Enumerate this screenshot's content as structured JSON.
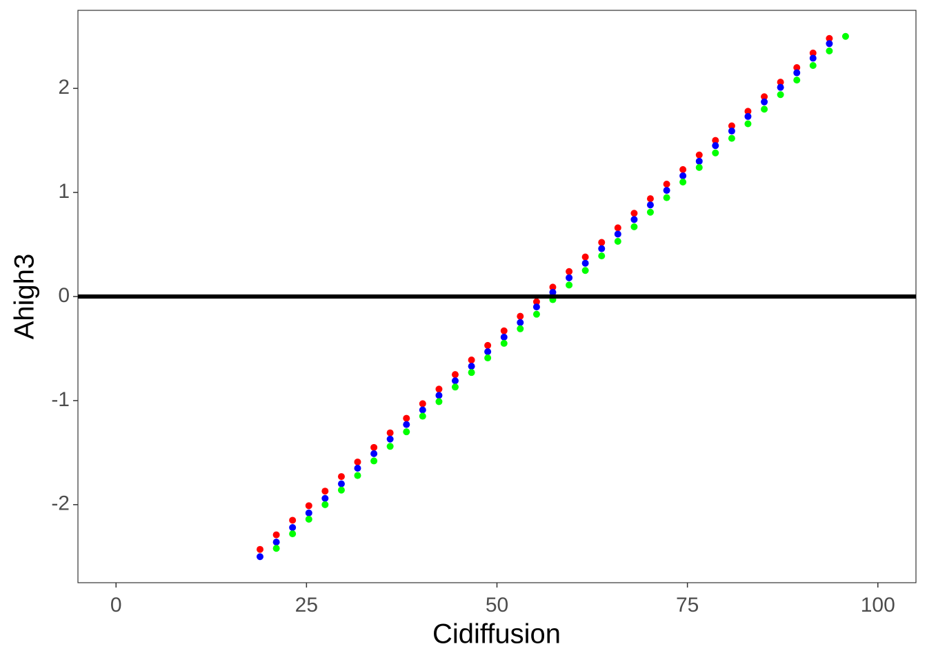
{
  "chart_data": {
    "type": "scatter",
    "x_label": "Cidiffusion",
    "y_label": "Ahigh3",
    "xlim": [
      -5,
      105
    ],
    "ylim": [
      -2.75,
      2.75
    ],
    "xticks": [
      0,
      25,
      50,
      75,
      100
    ],
    "yticks": [
      -2,
      -1,
      0,
      1,
      2
    ],
    "grid": false,
    "hline": 0,
    "hline_color": "#000000",
    "series": [
      {
        "color": "#ff0000",
        "x": [
          18.9,
          21.04,
          23.17,
          25.31,
          27.44,
          29.58,
          31.71,
          33.85,
          35.98,
          38.12,
          40.25,
          42.39,
          44.52,
          46.66,
          48.79,
          50.93,
          53.06,
          55.2,
          57.33,
          59.47,
          61.6,
          63.74,
          65.87,
          68.01,
          70.14,
          72.28,
          74.41,
          76.55,
          78.68,
          80.82,
          82.95,
          85.09,
          87.22,
          89.36,
          91.49,
          93.63
        ],
        "values": [
          -2.43,
          -2.29,
          -2.15,
          -2.01,
          -1.87,
          -1.73,
          -1.59,
          -1.45,
          -1.31,
          -1.17,
          -1.03,
          -0.89,
          -0.75,
          -0.61,
          -0.47,
          -0.33,
          -0.19,
          -0.05,
          0.09,
          0.24,
          0.38,
          0.52,
          0.66,
          0.8,
          0.94,
          1.08,
          1.22,
          1.36,
          1.5,
          1.64,
          1.78,
          1.92,
          2.06,
          2.2,
          2.34,
          2.48
        ]
      },
      {
        "color": "#0000ff",
        "x": [
          18.9,
          21.04,
          23.17,
          25.31,
          27.44,
          29.58,
          31.71,
          33.85,
          35.98,
          38.12,
          40.25,
          42.39,
          44.52,
          46.66,
          48.79,
          50.93,
          53.06,
          55.2,
          57.33,
          59.47,
          61.6,
          63.74,
          65.87,
          68.01,
          70.14,
          72.28,
          74.41,
          76.55,
          78.68,
          80.82,
          82.95,
          85.09,
          87.22,
          89.36,
          91.49,
          93.63
        ],
        "values": [
          -2.5,
          -2.36,
          -2.22,
          -2.08,
          -1.94,
          -1.8,
          -1.65,
          -1.51,
          -1.37,
          -1.23,
          -1.09,
          -0.95,
          -0.81,
          -0.67,
          -0.53,
          -0.39,
          -0.25,
          -0.1,
          0.04,
          0.18,
          0.32,
          0.46,
          0.6,
          0.74,
          0.88,
          1.02,
          1.16,
          1.3,
          1.45,
          1.59,
          1.73,
          1.87,
          2.01,
          2.15,
          2.29,
          2.43
        ]
      },
      {
        "color": "#00ff00",
        "x": [
          21.04,
          23.17,
          25.31,
          27.44,
          29.58,
          31.71,
          33.85,
          35.98,
          38.12,
          40.25,
          42.39,
          44.52,
          46.66,
          48.79,
          50.93,
          53.06,
          55.2,
          57.33,
          59.47,
          61.6,
          63.74,
          65.87,
          68.01,
          70.14,
          72.28,
          74.41,
          76.55,
          78.68,
          80.82,
          82.95,
          85.09,
          87.22,
          89.36,
          91.49,
          93.63,
          95.76
        ],
        "values": [
          -2.42,
          -2.28,
          -2.14,
          -2.0,
          -1.86,
          -1.72,
          -1.58,
          -1.44,
          -1.3,
          -1.15,
          -1.01,
          -0.87,
          -0.73,
          -0.59,
          -0.45,
          -0.31,
          -0.17,
          -0.03,
          0.11,
          0.25,
          0.39,
          0.53,
          0.67,
          0.81,
          0.95,
          1.1,
          1.24,
          1.38,
          1.52,
          1.66,
          1.8,
          1.94,
          2.08,
          2.22,
          2.36,
          2.5
        ]
      }
    ]
  }
}
